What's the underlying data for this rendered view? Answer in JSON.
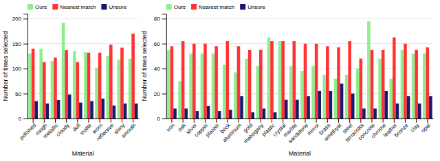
{
  "chart_data": [
    {
      "type": "bar",
      "xlabel": "Material",
      "ylabel": "Number of times selected",
      "categories": [
        "polished",
        "rough",
        "metallic",
        "cloudy",
        "dull",
        "matte",
        "worn",
        "reflective",
        "shiny",
        "smooth"
      ],
      "series": [
        {
          "name": "Ours",
          "color": "#90EE90",
          "values": [
            130,
            140,
            115,
            192,
            135,
            133,
            102,
            125,
            118,
            120
          ]
        },
        {
          "name": "Nearest match",
          "color": "#FF3333",
          "values": [
            140,
            113,
            122,
            137,
            113,
            132,
            132,
            148,
            142,
            170
          ]
        },
        {
          "name": "Unsure",
          "color": "#191970",
          "values": [
            35,
            30,
            37,
            48,
            32,
            35,
            40,
            26,
            30,
            30
          ]
        }
      ],
      "ylim": [
        0,
        210
      ],
      "yticks": [
        0,
        50,
        100,
        150,
        200
      ],
      "grid": true,
      "legend": "upper left"
    },
    {
      "type": "bar",
      "xlabel": "Material",
      "ylabel": "Number of times selected",
      "categories": [
        "iron",
        "oak",
        "silver",
        "copper",
        "plaster",
        "brick",
        "aluminum",
        "gold",
        "mahogany",
        "plastic",
        "crystal",
        "marble",
        "sandstone",
        "mirror",
        "brass",
        "amethyst",
        "steel",
        "terracotta",
        "concrete",
        "chrome",
        "leather",
        "bronze",
        "clay",
        "opal"
      ],
      "series": [
        {
          "name": "Ours",
          "color": "#90EE90",
          "values": [
            55,
            30,
            52,
            52,
            52,
            43,
            37,
            48,
            42,
            65,
            62,
            42,
            38,
            42,
            35,
            32,
            35,
            40,
            78,
            48,
            32,
            55,
            52,
            52
          ]
        },
        {
          "name": "Nearest match",
          "color": "#FF3333",
          "values": [
            58,
            62,
            60,
            60,
            58,
            62,
            58,
            55,
            55,
            62,
            62,
            62,
            60,
            60,
            58,
            57,
            62,
            48,
            55,
            55,
            65,
            60,
            55,
            57
          ]
        },
        {
          "name": "Unsure",
          "color": "#191970",
          "values": [
            8,
            8,
            6,
            10,
            6,
            7,
            18,
            5,
            8,
            5,
            15,
            15,
            18,
            22,
            22,
            28,
            20,
            8,
            8,
            22,
            12,
            18,
            12,
            18
          ]
        }
      ],
      "ylim": [
        0,
        84
      ],
      "yticks": [
        0,
        20,
        40,
        60,
        80
      ],
      "grid": true,
      "legend": "upper left"
    }
  ]
}
